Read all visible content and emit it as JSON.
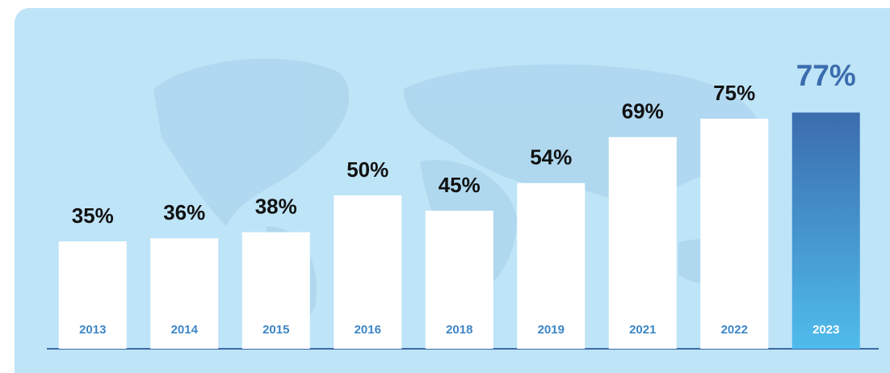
{
  "chart_data": {
    "type": "bar",
    "categories": [
      "2013",
      "2014",
      "2015",
      "2016",
      "2018",
      "2019",
      "2021",
      "2022",
      "2023"
    ],
    "values": [
      35,
      36,
      38,
      50,
      45,
      54,
      69,
      75,
      77
    ],
    "value_labels": [
      "35%",
      "36%",
      "38%",
      "50%",
      "45%",
      "54%",
      "69%",
      "75%",
      "77%"
    ],
    "color": "#ffffff",
    "highlight_index": 8,
    "highlight_colors": [
      "#3b6cae",
      "#4fbcec"
    ],
    "ylim": [
      0,
      100
    ],
    "grid": false
  }
}
